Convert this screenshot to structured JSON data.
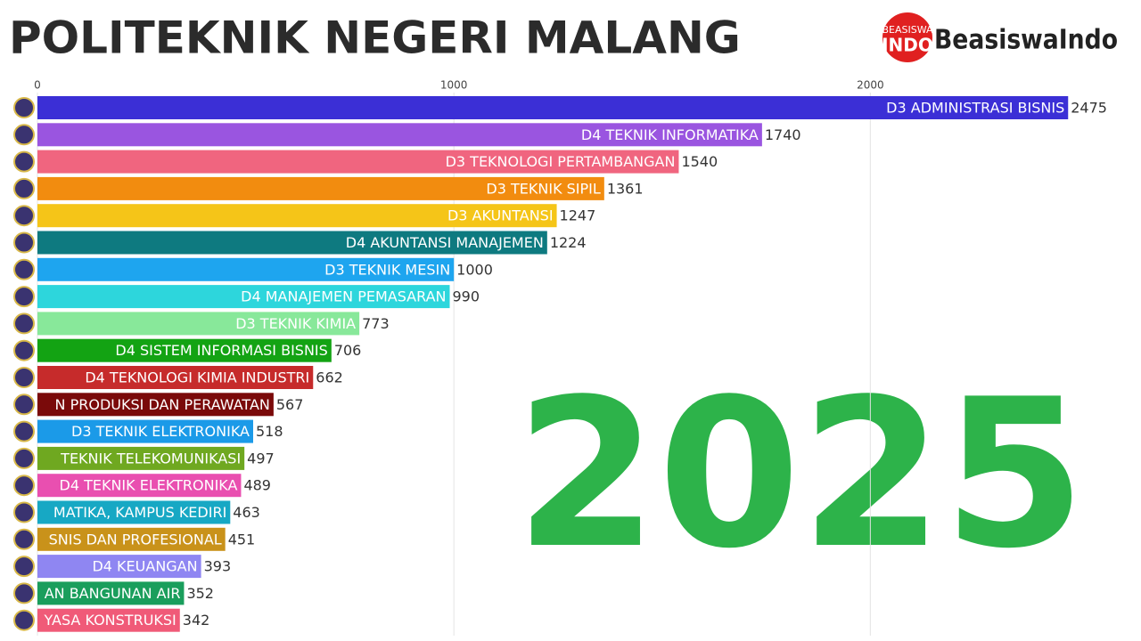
{
  "chart_data": {
    "type": "bar",
    "orientation": "horizontal",
    "title": "POLITEKNIK NEGERI MALANG",
    "year": "2025",
    "brand": {
      "badge_top": "BEASISWA",
      "badge_bottom": "INDO",
      "name": "BeasiswaIndo"
    },
    "categories": [
      "D3 ADMINISTRASI BISNIS",
      "D4 TEKNIK INFORMATIKA",
      "D3 TEKNOLOGI PERTAMBANGAN",
      "D3 TEKNIK SIPIL",
      "D3 AKUNTANSI",
      "D4 AKUNTANSI MANAJEMEN",
      "D3 TEKNIK MESIN",
      "D4 MANAJEMEN PEMASARAN",
      "D3 TEKNIK KIMIA",
      "D4 SISTEM INFORMASI BISNIS",
      "D4 TEKNOLOGI KIMIA INDUSTRI",
      "N PRODUKSI DAN PERAWATAN",
      "D3 TEKNIK ELEKTRONIKA",
      "TEKNIK TELEKOMUNIKASI",
      "D4 TEKNIK ELEKTRONIKA",
      "MATIKA, KAMPUS KEDIRI",
      "SNIS DAN PROFESIONAL",
      "D4 KEUANGAN",
      "AN BANGUNAN AIR",
      "YASA KONSTRUKSI"
    ],
    "values": [
      2475,
      1740,
      1540,
      1361,
      1247,
      1224,
      1000,
      990,
      773,
      706,
      662,
      567,
      518,
      497,
      489,
      463,
      451,
      393,
      352,
      342
    ],
    "colors": [
      "#3b2fd6",
      "#9a55e0",
      "#f0657f",
      "#f28c0f",
      "#f5c518",
      "#0e7a80",
      "#1ea5ef",
      "#2dd6dc",
      "#88e89a",
      "#13a313",
      "#c62b2b",
      "#7a0a0a",
      "#1b9ae8",
      "#6fa820",
      "#e94fb0",
      "#17a8c4",
      "#c9921a",
      "#8f86f2",
      "#1a9e5c",
      "#f05a78"
    ],
    "xlim": [
      0,
      2650
    ],
    "xticks": [
      0,
      1000,
      2000
    ],
    "grid": true
  }
}
